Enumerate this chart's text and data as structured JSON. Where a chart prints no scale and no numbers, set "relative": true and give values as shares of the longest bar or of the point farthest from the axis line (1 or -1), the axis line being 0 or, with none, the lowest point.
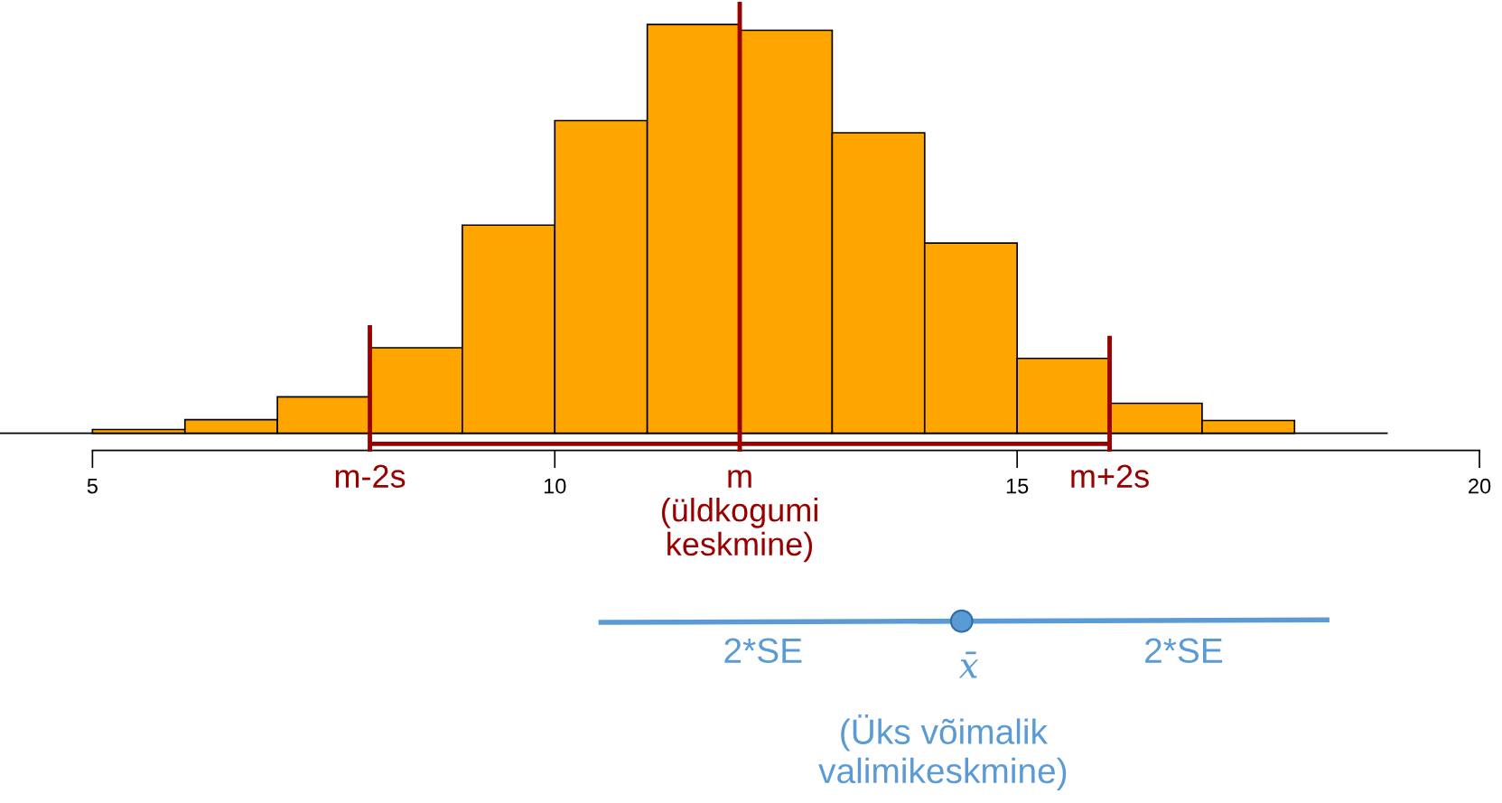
{
  "chart_data": {
    "type": "bar",
    "relative": true,
    "x": [
      5.5,
      6.5,
      7.5,
      8.5,
      9.5,
      10.5,
      11.5,
      12.5,
      13.5,
      14.5,
      15.5,
      16.5,
      17.5
    ],
    "xlim": [
      4,
      20
    ],
    "xticks": [
      5,
      10,
      15,
      20
    ],
    "color": "#ffa500",
    "values": [
      0.009,
      0.033,
      0.089,
      0.209,
      0.509,
      0.765,
      1,
      0.986,
      0.735,
      0.465,
      0.183,
      0.073,
      0.031
    ],
    "ref_lines": [
      {
        "axis": "x",
        "value": 8,
        "label": "m-2s",
        "color": "#990000"
      },
      {
        "axis": "x",
        "value": 12,
        "label": "m\n(üldkogumi\nkeskmine)",
        "color": "#990000"
      },
      {
        "axis": "x",
        "value": 16,
        "label": "m+2s",
        "color": "#990000"
      }
    ],
    "annotations": [
      "x̄",
      "2*SE",
      "2*SE",
      "(Üks võimalik\nvalimikeskmine)"
    ]
  }
}
